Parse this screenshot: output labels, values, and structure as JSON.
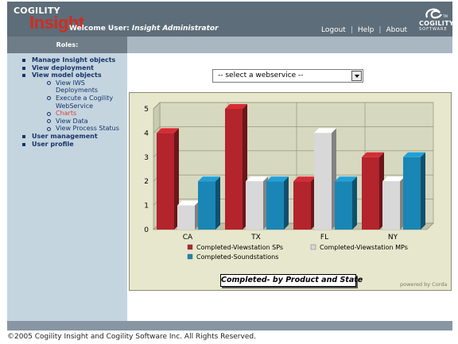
{
  "header": {
    "logo_small": "COGILITY",
    "logo_big": "Insight",
    "welcome_label": "Welcome User:",
    "user_name": "Insight Administrator",
    "links": [
      "Logout",
      "Help",
      "About"
    ],
    "brand_name": "COGILITY",
    "brand_sub": "SOFTWARE"
  },
  "sidebar": {
    "roles_label": "Roles:",
    "items": [
      {
        "label": "Manage Insight objects"
      },
      {
        "label": "View deployment"
      },
      {
        "label": "View model objects"
      },
      {
        "label": "User management"
      },
      {
        "label": "User profile"
      }
    ],
    "subitems": [
      {
        "line1": "View IWS",
        "line2": "Deployments"
      },
      {
        "line1": "Execute a Cogility",
        "line2": "WebService"
      },
      {
        "line1": "Charts",
        "active": true
      },
      {
        "line1": "View Data"
      },
      {
        "line1": "View Process Status"
      }
    ]
  },
  "select": {
    "value": "-- select a webservice --"
  },
  "chart_data": {
    "type": "bar",
    "title": "Completed- by Product and State",
    "categories": [
      "CA",
      "TX",
      "FL",
      "NY"
    ],
    "series": [
      {
        "name": "Completed-Viewstation SPs",
        "color": "#b3242c",
        "values": [
          4,
          5,
          2,
          3
        ]
      },
      {
        "name": "Completed-Viewstation MPs",
        "color": "#d8d8d8",
        "values": [
          1,
          2,
          4,
          2
        ]
      },
      {
        "name": "Completed-Soundstations",
        "color": "#1a86b5",
        "values": [
          2,
          2,
          2,
          3
        ]
      }
    ],
    "ylim": [
      0,
      5
    ],
    "yticks": [
      "0",
      "1",
      "2",
      "3",
      "4",
      "5"
    ],
    "grid": true,
    "legend": "bottom",
    "credit": "powered by Corda"
  },
  "footer": {
    "copyright": "©2005 Cogility Insight and Cogility Software Inc. All Rights Reserved."
  }
}
